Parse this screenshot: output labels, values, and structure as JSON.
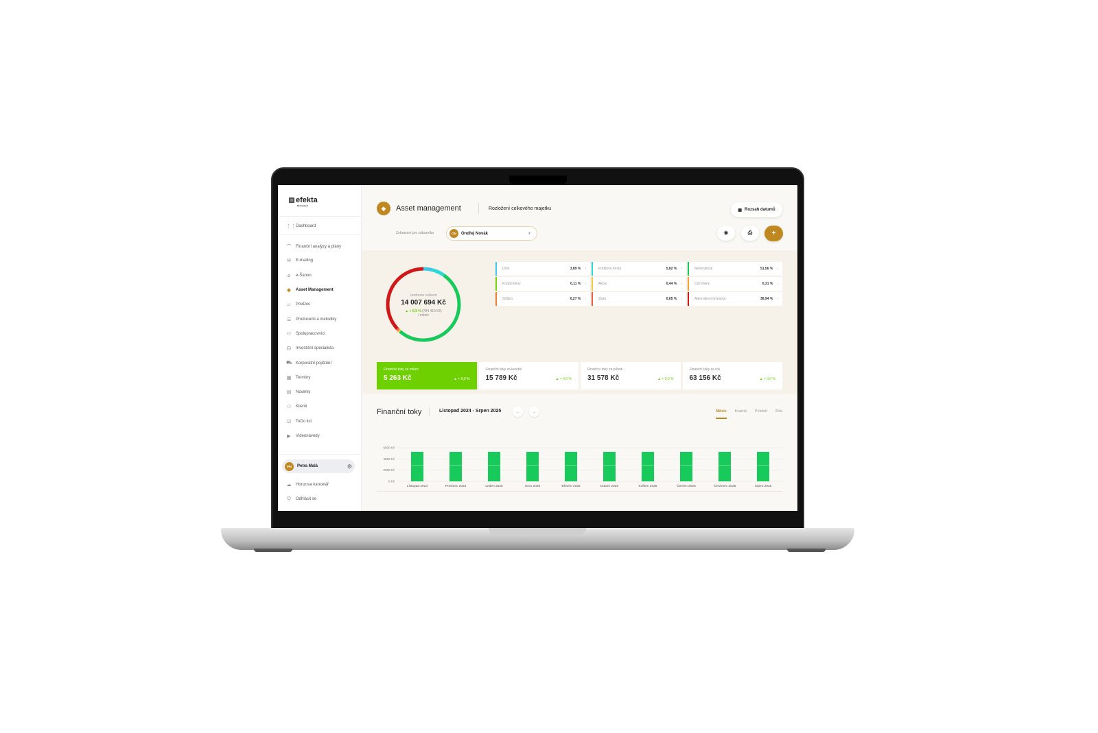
{
  "sidebar": {
    "logo": "efekta",
    "logo_sub": "Brokerpool",
    "items": [
      {
        "label": "Dashboard",
        "icon": "grid-icon",
        "g": "⋮⋮"
      },
      {
        "label": "Finanční analýzy a plány",
        "icon": "chart-icon",
        "g": "⌒"
      },
      {
        "label": "E-mailing",
        "icon": "mail-icon",
        "g": "✉"
      },
      {
        "label": "e-Šanon",
        "icon": "paperclip-icon",
        "g": "⌀"
      },
      {
        "label": "Asset Management",
        "icon": "diamond-icon",
        "g": "◆",
        "active": true
      },
      {
        "label": "PovDoc",
        "icon": "document-icon",
        "g": "▱"
      },
      {
        "label": "Producenti a metodiky",
        "icon": "list-icon",
        "g": "☰"
      },
      {
        "label": "Spolupracovníci",
        "icon": "users-icon",
        "g": "⚇"
      },
      {
        "label": "Investiční specialista",
        "icon": "headset-icon",
        "g": "☊"
      },
      {
        "label": "Korporátní pojištění",
        "icon": "car-icon",
        "g": "⛟"
      },
      {
        "label": "Termíny",
        "icon": "calendar-icon",
        "g": "▦"
      },
      {
        "label": "Novinky",
        "icon": "news-icon",
        "g": "▤"
      },
      {
        "label": "Klienti",
        "icon": "clients-icon",
        "g": "⚇"
      },
      {
        "label": "ToDo list",
        "icon": "checkbox-icon",
        "g": "☑"
      },
      {
        "label": "Videonávody",
        "icon": "video-icon",
        "g": "▶"
      }
    ],
    "user": {
      "initials": "PM",
      "name": "Petra Malá"
    },
    "bottom": [
      {
        "label": "Honzova kancelář",
        "icon": "cloud-icon",
        "g": "☁"
      },
      {
        "label": "Odhlásit se",
        "icon": "power-icon",
        "g": "⏻"
      }
    ]
  },
  "header": {
    "title": "Asset management",
    "subtitle": "Rozložení celkového majetku",
    "date_range": "Rozsah datumů",
    "customer_label": "Zobrazení pro zákazníka",
    "customer_initials": "ON",
    "customer": "Ondřej Novák"
  },
  "summary": {
    "label": "Hodnota celkem",
    "total": "14 007 694 Kč",
    "change": "▲ + 5,9 %",
    "change_abs": "(784 419 Kč)",
    "period": "/ měsíc"
  },
  "assets": [
    {
      "name": "Účet",
      "pct": "3,89 %",
      "v": 3.89,
      "color": "#3cc8e8"
    },
    {
      "name": "Podílové fondy",
      "pct": "5,82 %",
      "v": 5.82,
      "color": "#2ad8d8"
    },
    {
      "name": "Nemovitosti",
      "pct": "51,56 %",
      "v": 51.56,
      "color": "#18c95c"
    },
    {
      "name": "Kryptoměny",
      "pct": "0,11 %",
      "v": 0.11,
      "color": "#7ad000"
    },
    {
      "name": "Akcie",
      "pct": "0,44 %",
      "v": 0.44,
      "color": "#f5c842"
    },
    {
      "name": "Cizí měny",
      "pct": "0,31 %",
      "v": 0.31,
      "color": "#f5a030"
    },
    {
      "name": "Stříbro",
      "pct": "0,27 %",
      "v": 0.27,
      "color": "#f57a30"
    },
    {
      "name": "Zlato",
      "pct": "0,65 %",
      "v": 0.65,
      "color": "#f05a40"
    },
    {
      "name": "Alternativní investice",
      "pct": "36,94 %",
      "v": 36.94,
      "color": "#d01818"
    }
  ],
  "cards": [
    {
      "title": "Finanční toky za měsíc",
      "value": "5 263 Kč",
      "change": "▲ + 0,0 %"
    },
    {
      "title": "Finanční toky za kvartál",
      "value": "15 789 Kč",
      "change": "▲ + 0,0 %"
    },
    {
      "title": "Finanční toky za půlrok",
      "value": "31 578 Kč",
      "change": "▲ + 0,0 %"
    },
    {
      "title": "Finanční toky za rok",
      "value": "63 156 Kč",
      "change": "▲ + 0,0 %"
    }
  ],
  "flows": {
    "title": "Finanční toky",
    "range": "Listopad 2024 - Srpen 2025",
    "prev": "←",
    "next": "→",
    "tabs": [
      "Měsíc",
      "Kvartál",
      "Pololetí",
      "Rok"
    ],
    "active_tab": "Měsíc"
  },
  "chart_data": {
    "type": "bar",
    "categories": [
      "Listopad 2024",
      "Prosinec 2024",
      "Leden 2025",
      "Únor 2025",
      "Březen 2025",
      "Duben 2025",
      "Květen 2025",
      "Červen 2025",
      "Červenec 2025",
      "Srpen 2025"
    ],
    "values": [
      5263,
      5263,
      5263,
      5263,
      5263,
      5263,
      5263,
      5263,
      5263,
      5263
    ],
    "yticks": [
      "0 Kč",
      "2000 Kč",
      "4000 Kč",
      "6000 Kč"
    ],
    "ylim": [
      0,
      6000
    ],
    "color": "#18c95c",
    "grid": true
  }
}
